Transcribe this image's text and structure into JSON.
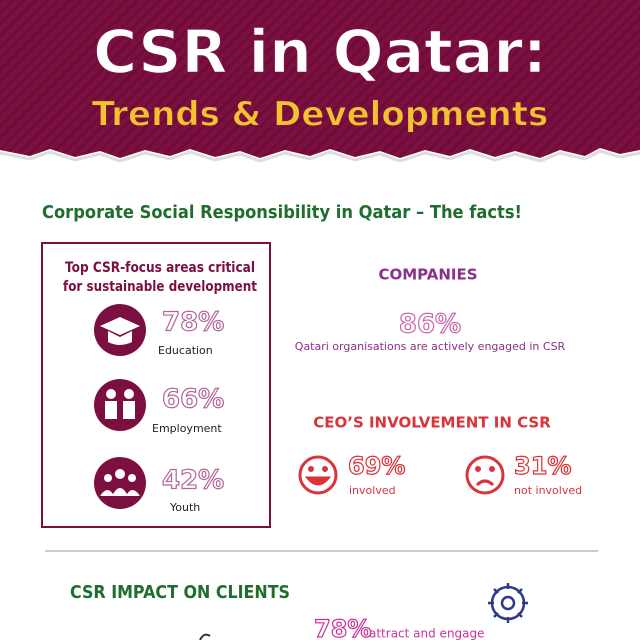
{
  "header": {
    "title": "CSR in Qatar:",
    "subtitle": "Trends & Developments"
  },
  "section": {
    "heading": "Corporate Social Responsibility in Qatar – The facts!"
  },
  "focus_areas": {
    "title_lines": [
      "Top CSR-focus areas critical",
      "for sustainable development"
    ],
    "items": [
      {
        "percent": "78%",
        "label": "Education"
      },
      {
        "percent": "66%",
        "label": "Employment"
      },
      {
        "percent": "42%",
        "label": "Youth"
      }
    ]
  },
  "companies": {
    "heading": "COMPANIES",
    "percent": "86%",
    "caption": "Qatari organisations are actively engaged in CSR"
  },
  "ceo": {
    "heading": "CEO’S INVOLVEMENT IN CSR",
    "involved": {
      "percent": "69%",
      "label": "involved"
    },
    "not_involved": {
      "percent": "31%",
      "label": "not involved"
    }
  },
  "impact": {
    "heading": "CSR IMPACT ON CLIENTS",
    "percent": "78%",
    "label": "attract and engage"
  }
}
